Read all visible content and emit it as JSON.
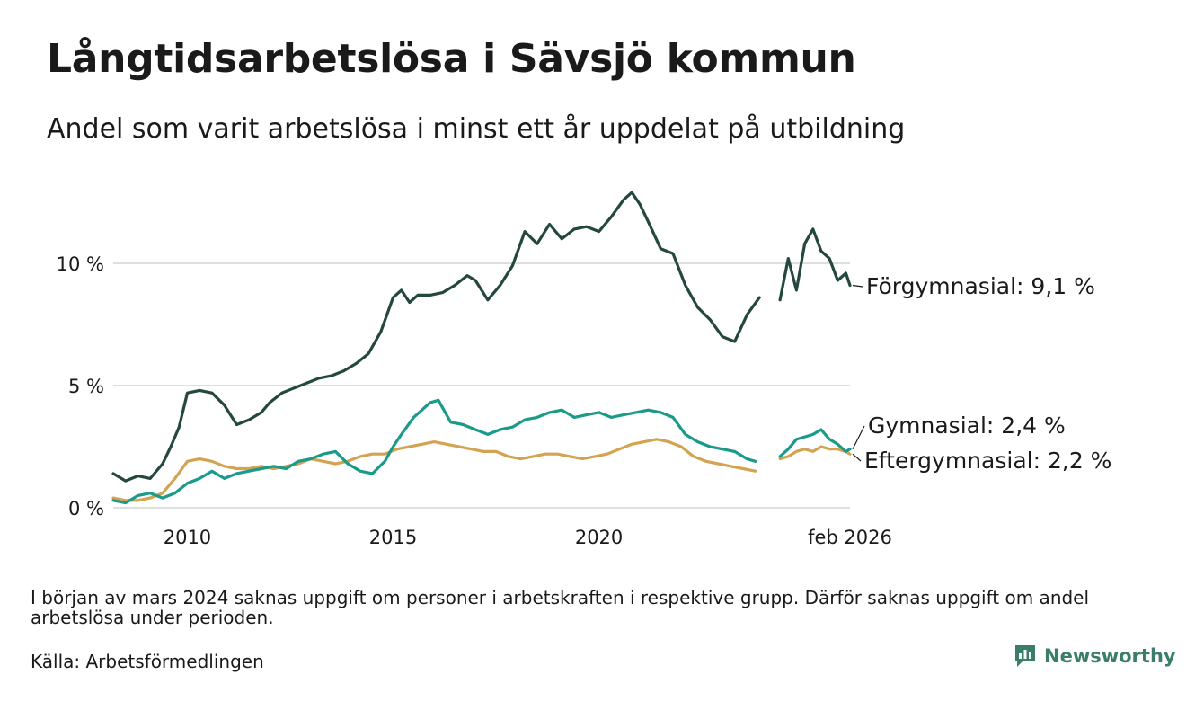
{
  "title": "Långtidsarbetslösa i Sävsjö kommun",
  "subtitle": "Andel som varit arbetslösa i minst ett år uppdelat på utbildning",
  "footnote": "I början av mars 2024 saknas uppgift om personer i arbetskraften i respektive grupp. Därför saknas uppgift om andel arbetslösa under perioden.",
  "source": "Källa: Arbetsförmedlingen",
  "brand": "Newsworthy",
  "colors": {
    "forgymnasial": "#24473f",
    "gymnasial": "#1a9a88",
    "eftergymnasial": "#d4a351",
    "grid": "#dedede",
    "brand": "#3a7d6b"
  },
  "chart_data": {
    "type": "line",
    "title": "Långtidsarbetslösa i Sävsjö kommun",
    "xlabel": "",
    "ylabel": "",
    "xlim": [
      2008.2,
      2026.1
    ],
    "ylim": [
      0,
      13.5
    ],
    "y_ticks": [
      0,
      5,
      10
    ],
    "y_tick_labels": [
      "0 %",
      "5 %",
      "10 %"
    ],
    "x_ticks": [
      2010,
      2015,
      2020,
      2026.1
    ],
    "x_tick_labels": [
      "2010",
      "2015",
      "2020",
      "feb 2026"
    ],
    "gap": [
      2023.95,
      2024.35
    ],
    "series": [
      {
        "name": "Förgymnasial",
        "label": "Förgymnasial: 9,1 %",
        "color_key": "forgymnasial",
        "x": [
          2008.2,
          2008.5,
          2008.8,
          2009.1,
          2009.4,
          2009.6,
          2009.8,
          2010.0,
          2010.3,
          2010.6,
          2010.9,
          2011.2,
          2011.5,
          2011.8,
          2012.0,
          2012.3,
          2012.6,
          2012.9,
          2013.2,
          2013.5,
          2013.8,
          2014.1,
          2014.4,
          2014.7,
          2015.0,
          2015.2,
          2015.4,
          2015.6,
          2015.9,
          2016.2,
          2016.5,
          2016.8,
          2017.0,
          2017.3,
          2017.6,
          2017.9,
          2018.2,
          2018.5,
          2018.8,
          2019.1,
          2019.4,
          2019.7,
          2020.0,
          2020.3,
          2020.6,
          2020.8,
          2021.0,
          2021.2,
          2021.5,
          2021.8,
          2022.1,
          2022.4,
          2022.7,
          2023.0,
          2023.3,
          2023.6,
          2023.9,
          2024.4,
          2024.6,
          2024.8,
          2025.0,
          2025.2,
          2025.4,
          2025.6,
          2025.8,
          2026.0,
          2026.1
        ],
        "y": [
          1.4,
          1.1,
          1.3,
          1.2,
          1.8,
          2.5,
          3.3,
          4.7,
          4.8,
          4.7,
          4.2,
          3.4,
          3.6,
          3.9,
          4.3,
          4.7,
          4.9,
          5.1,
          5.3,
          5.4,
          5.6,
          5.9,
          6.3,
          7.2,
          8.6,
          8.9,
          8.4,
          8.7,
          8.7,
          8.8,
          9.1,
          9.5,
          9.3,
          8.5,
          9.1,
          9.9,
          11.3,
          10.8,
          11.6,
          11.0,
          11.4,
          11.5,
          11.3,
          11.9,
          12.6,
          12.9,
          12.4,
          11.7,
          10.6,
          10.4,
          9.1,
          8.2,
          7.7,
          7.0,
          6.8,
          7.9,
          8.6,
          8.5,
          10.2,
          8.9,
          10.8,
          11.4,
          10.5,
          10.2,
          9.3,
          9.6,
          9.1
        ]
      },
      {
        "name": "Gymnasial",
        "label": "Gymnasial: 2,4 %",
        "color_key": "gymnasial",
        "x": [
          2008.2,
          2008.5,
          2008.8,
          2009.1,
          2009.4,
          2009.7,
          2010.0,
          2010.3,
          2010.6,
          2010.9,
          2011.2,
          2011.5,
          2011.8,
          2012.1,
          2012.4,
          2012.7,
          2013.0,
          2013.3,
          2013.6,
          2013.9,
          2014.2,
          2014.5,
          2014.8,
          2015.0,
          2015.2,
          2015.5,
          2015.7,
          2015.9,
          2016.1,
          2016.4,
          2016.7,
          2017.0,
          2017.3,
          2017.6,
          2017.9,
          2018.2,
          2018.5,
          2018.8,
          2019.1,
          2019.4,
          2019.7,
          2020.0,
          2020.3,
          2020.6,
          2020.9,
          2021.2,
          2021.5,
          2021.8,
          2022.1,
          2022.4,
          2022.7,
          2023.0,
          2023.3,
          2023.6,
          2023.8,
          2024.4,
          2024.6,
          2024.8,
          2025.0,
          2025.2,
          2025.4,
          2025.6,
          2025.8,
          2026.0,
          2026.1
        ],
        "y": [
          0.3,
          0.2,
          0.5,
          0.6,
          0.4,
          0.6,
          1.0,
          1.2,
          1.5,
          1.2,
          1.4,
          1.5,
          1.6,
          1.7,
          1.6,
          1.9,
          2.0,
          2.2,
          2.3,
          1.8,
          1.5,
          1.4,
          1.9,
          2.5,
          3.0,
          3.7,
          4.0,
          4.3,
          4.4,
          3.5,
          3.4,
          3.2,
          3.0,
          3.2,
          3.3,
          3.6,
          3.7,
          3.9,
          4.0,
          3.7,
          3.8,
          3.9,
          3.7,
          3.8,
          3.9,
          4.0,
          3.9,
          3.7,
          3.0,
          2.7,
          2.5,
          2.4,
          2.3,
          2.0,
          1.9,
          2.1,
          2.4,
          2.8,
          2.9,
          3.0,
          3.2,
          2.8,
          2.6,
          2.3,
          2.4
        ]
      },
      {
        "name": "Eftergymnasial",
        "label": "Eftergymnasial: 2,2 %",
        "color_key": "eftergymnasial",
        "x": [
          2008.2,
          2008.5,
          2008.8,
          2009.1,
          2009.4,
          2009.7,
          2010.0,
          2010.3,
          2010.6,
          2010.9,
          2011.2,
          2011.5,
          2011.8,
          2012.1,
          2012.4,
          2012.7,
          2013.0,
          2013.3,
          2013.6,
          2013.9,
          2014.2,
          2014.5,
          2014.8,
          2015.1,
          2015.4,
          2015.7,
          2016.0,
          2016.3,
          2016.6,
          2016.9,
          2017.2,
          2017.5,
          2017.8,
          2018.1,
          2018.4,
          2018.7,
          2019.0,
          2019.3,
          2019.6,
          2019.9,
          2020.2,
          2020.5,
          2020.8,
          2021.1,
          2021.4,
          2021.7,
          2022.0,
          2022.3,
          2022.6,
          2022.9,
          2023.2,
          2023.5,
          2023.8,
          2024.4,
          2024.6,
          2024.8,
          2025.0,
          2025.2,
          2025.4,
          2025.6,
          2025.8,
          2026.0,
          2026.1
        ],
        "y": [
          0.4,
          0.3,
          0.3,
          0.4,
          0.6,
          1.2,
          1.9,
          2.0,
          1.9,
          1.7,
          1.6,
          1.6,
          1.7,
          1.6,
          1.7,
          1.8,
          2.0,
          1.9,
          1.8,
          1.9,
          2.1,
          2.2,
          2.2,
          2.4,
          2.5,
          2.6,
          2.7,
          2.6,
          2.5,
          2.4,
          2.3,
          2.3,
          2.1,
          2.0,
          2.1,
          2.2,
          2.2,
          2.1,
          2.0,
          2.1,
          2.2,
          2.4,
          2.6,
          2.7,
          2.8,
          2.7,
          2.5,
          2.1,
          1.9,
          1.8,
          1.7,
          1.6,
          1.5,
          2.0,
          2.1,
          2.3,
          2.4,
          2.3,
          2.5,
          2.4,
          2.4,
          2.3,
          2.2
        ]
      }
    ]
  }
}
